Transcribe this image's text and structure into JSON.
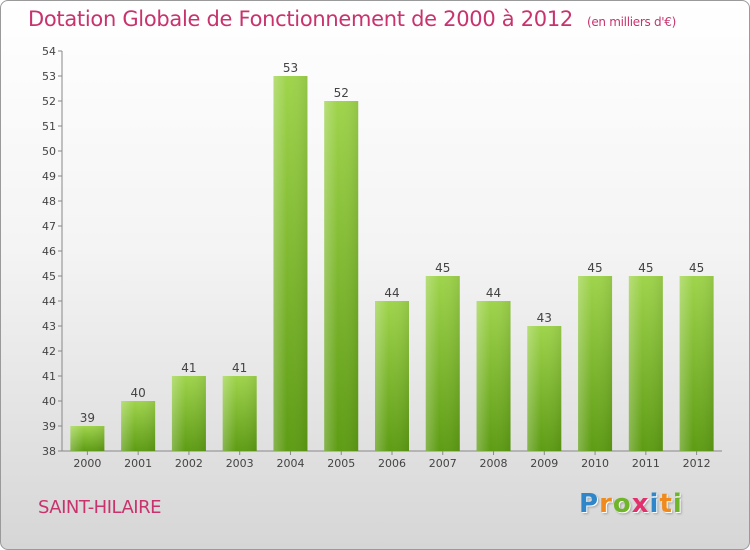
{
  "title": "Dotation Globale de Fonctionnement de 2000 à 2012",
  "subtitle": "(en milliers d'€)",
  "commune": "SAINT-HILAIRE",
  "logo": {
    "letters": [
      "P",
      "r",
      "o",
      "x",
      "i",
      "t",
      "i"
    ],
    "colors": [
      "#2f86c9",
      "#f08a1c",
      "#6fb52a",
      "#e2306c",
      "#2f86c9",
      "#f08a1c",
      "#6fb52a"
    ]
  },
  "colors": {
    "bar_top": "#9fd44c",
    "bar_bottom": "#5e9c14",
    "title": "#c8336e"
  },
  "chart_data": {
    "type": "bar",
    "categories": [
      "2000",
      "2001",
      "2002",
      "2003",
      "2004",
      "2005",
      "2006",
      "2007",
      "2008",
      "2009",
      "2010",
      "2011",
      "2012"
    ],
    "values": [
      39,
      40,
      41,
      41,
      53,
      52,
      44,
      45,
      44,
      43,
      45,
      45,
      45
    ],
    "title": "Dotation Globale de Fonctionnement de 2000 à 2012",
    "subtitle": "(en milliers d'€)",
    "ylim": [
      38,
      54
    ],
    "yticks": [
      38,
      39,
      40,
      41,
      42,
      43,
      44,
      45,
      46,
      47,
      48,
      49,
      50,
      51,
      52,
      53,
      54
    ],
    "grid": false,
    "legend": "none"
  }
}
